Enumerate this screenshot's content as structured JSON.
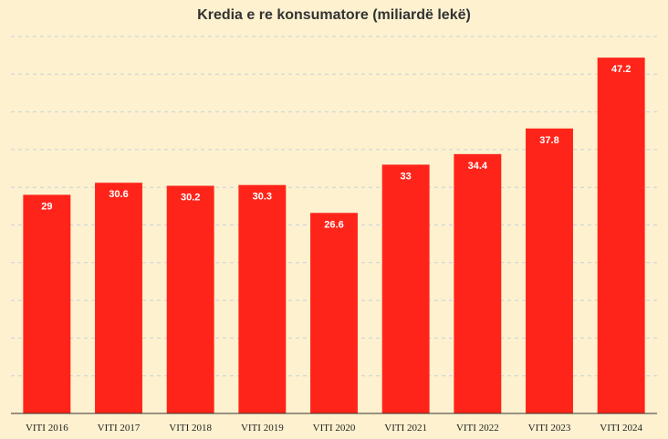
{
  "chart_data": {
    "type": "bar",
    "title": "Kredia e re konsumatore (miliardë lekë)",
    "categories": [
      "VITI 2016",
      "VITI 2017",
      "VITI 2018",
      "VITI 2019",
      "VITI 2020",
      "VITI 2021",
      "VITI 2022",
      "VITI 2023",
      "VITI 2024"
    ],
    "values": [
      29,
      30.6,
      30.2,
      30.3,
      26.6,
      33,
      34.4,
      37.8,
      47.2
    ],
    "value_labels": [
      "29",
      "30.6",
      "30.2",
      "30.3",
      "26.6",
      "33",
      "34.4",
      "37.8",
      "47.2"
    ],
    "xlabel": "",
    "ylabel": "",
    "ylim": [
      0,
      50
    ],
    "grid": true,
    "legend": "none",
    "colors": {
      "bar": "#ff2419",
      "background": "#fdf1cf",
      "grid": "#c8d2dc",
      "axis": "#333333"
    }
  }
}
